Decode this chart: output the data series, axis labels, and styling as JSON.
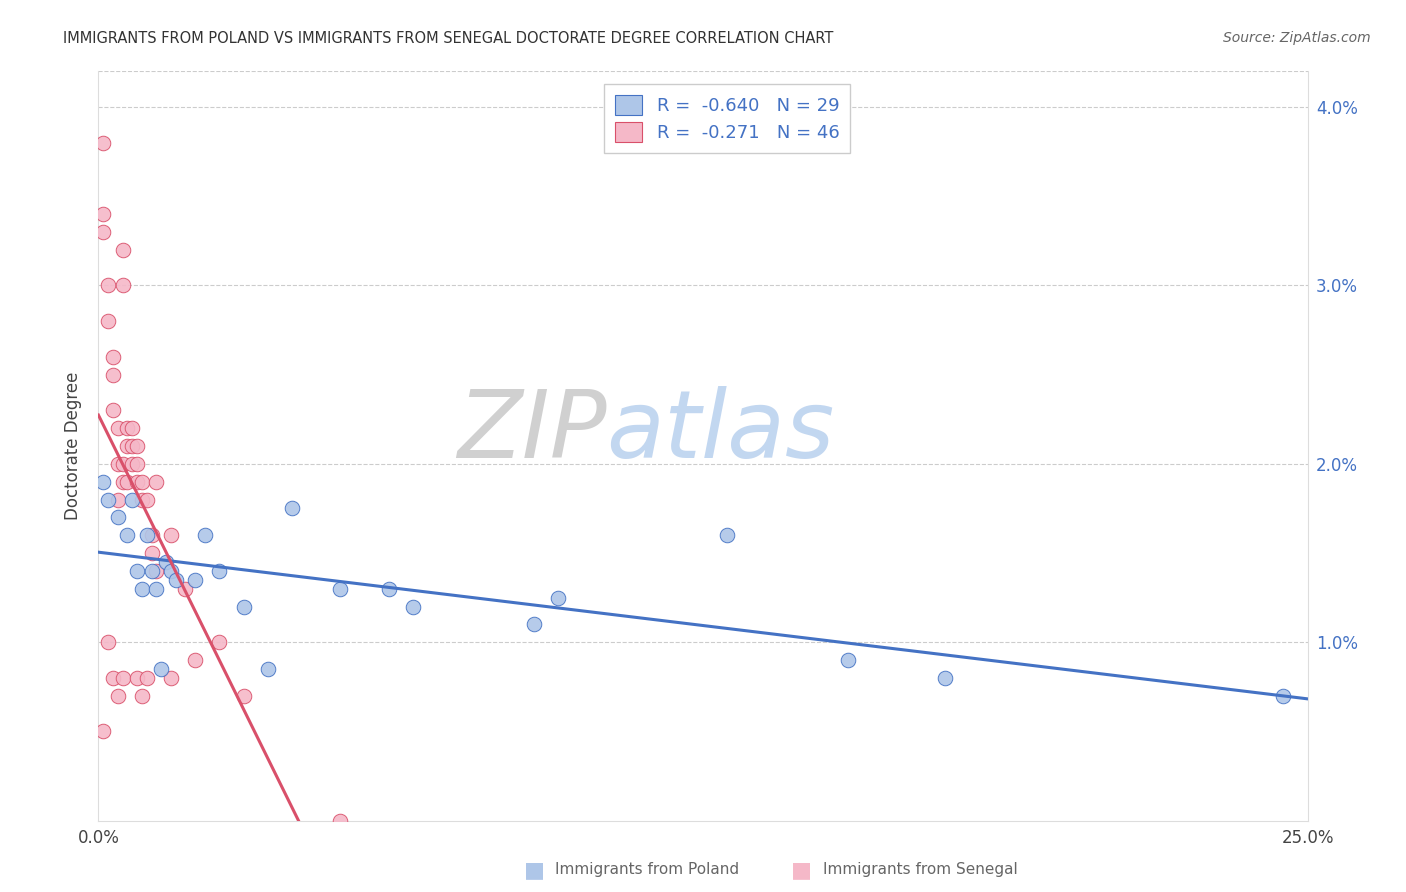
{
  "title": "IMMIGRANTS FROM POLAND VS IMMIGRANTS FROM SENEGAL DOCTORATE DEGREE CORRELATION CHART",
  "source": "Source: ZipAtlas.com",
  "ylabel": "Doctorate Degree",
  "xmin": 0.0,
  "xmax": 0.25,
  "ymin": 0.0,
  "ymax": 0.042,
  "legend_R_poland": "-0.640",
  "legend_N_poland": "29",
  "legend_R_senegal": "-0.271",
  "legend_N_senegal": "46",
  "color_poland": "#aec6e8",
  "color_senegal": "#f5b8c8",
  "line_color_poland": "#4472c4",
  "line_color_senegal": "#d9506a",
  "watermark_zip": "ZIP",
  "watermark_atlas": "atlas",
  "poland_x": [
    0.001,
    0.002,
    0.004,
    0.006,
    0.007,
    0.008,
    0.009,
    0.01,
    0.011,
    0.012,
    0.013,
    0.014,
    0.015,
    0.016,
    0.02,
    0.022,
    0.025,
    0.03,
    0.035,
    0.04,
    0.05,
    0.06,
    0.065,
    0.09,
    0.095,
    0.13,
    0.155,
    0.175,
    0.245
  ],
  "poland_y": [
    0.019,
    0.018,
    0.017,
    0.016,
    0.018,
    0.014,
    0.013,
    0.016,
    0.014,
    0.013,
    0.0085,
    0.0145,
    0.014,
    0.0135,
    0.0135,
    0.016,
    0.014,
    0.012,
    0.0085,
    0.0175,
    0.013,
    0.013,
    0.012,
    0.011,
    0.0125,
    0.016,
    0.009,
    0.008,
    0.007
  ],
  "senegal_x": [
    0.001,
    0.001,
    0.001,
    0.001,
    0.002,
    0.002,
    0.002,
    0.003,
    0.003,
    0.003,
    0.003,
    0.004,
    0.004,
    0.004,
    0.004,
    0.005,
    0.005,
    0.005,
    0.005,
    0.005,
    0.006,
    0.006,
    0.006,
    0.007,
    0.007,
    0.007,
    0.008,
    0.008,
    0.008,
    0.008,
    0.009,
    0.009,
    0.009,
    0.01,
    0.01,
    0.011,
    0.011,
    0.012,
    0.012,
    0.015,
    0.015,
    0.018,
    0.02,
    0.025,
    0.03,
    0.05
  ],
  "senegal_y": [
    0.038,
    0.034,
    0.033,
    0.005,
    0.03,
    0.028,
    0.01,
    0.026,
    0.025,
    0.023,
    0.008,
    0.022,
    0.02,
    0.018,
    0.007,
    0.032,
    0.03,
    0.02,
    0.019,
    0.008,
    0.022,
    0.021,
    0.019,
    0.022,
    0.021,
    0.02,
    0.021,
    0.02,
    0.019,
    0.008,
    0.019,
    0.018,
    0.007,
    0.018,
    0.008,
    0.016,
    0.015,
    0.019,
    0.014,
    0.016,
    0.008,
    0.013,
    0.009,
    0.01,
    0.007,
    0.0
  ],
  "poland_trend_x": [
    0.0,
    0.25
  ],
  "poland_trend_y": [
    0.0175,
    0.002
  ],
  "senegal_trend_x0": 0.0,
  "senegal_trend_x1": 0.028,
  "senegal_trend_y0": 0.022,
  "senegal_trend_y1": 0.0
}
